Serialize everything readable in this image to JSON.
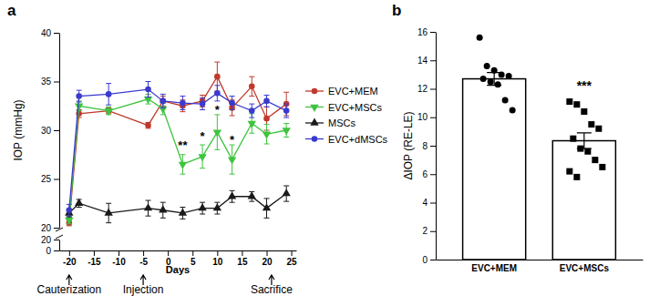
{
  "chart_data": [
    {
      "type": "line",
      "title": "a",
      "x_label": "Days",
      "y_label": "IOP (mmHg)",
      "x": [
        -20,
        -18,
        -12,
        -4,
        -1,
        3,
        7,
        10,
        13,
        17,
        20,
        24
      ],
      "xlim": [
        -22,
        26
      ],
      "xticks": [
        -20,
        -15,
        -10,
        -5,
        0,
        5,
        10,
        15,
        20,
        25
      ],
      "ylim": [
        0,
        40
      ],
      "yticks": [
        0,
        20,
        20,
        25,
        30,
        35,
        40
      ],
      "legend": "top-right",
      "series": [
        {
          "name": "EVC+MEM",
          "color": "#c0392b",
          "marker": "circle",
          "line_style": "solid",
          "values": [
            20.5,
            31.7,
            32.0,
            30.5,
            33.0,
            32.5,
            33.0,
            35.5,
            32.3,
            34.5,
            31.2,
            32.7
          ],
          "errors": [
            0.3,
            0.4,
            0.3,
            0.3,
            0.5,
            0.6,
            0.6,
            1.5,
            0.8,
            1.0,
            1.2,
            1.2
          ]
        },
        {
          "name": "EVC+MSCs",
          "color": "#3ec43e",
          "marker": "triangle-down",
          "line_style": "solid",
          "values": [
            20.8,
            32.5,
            32.0,
            33.2,
            32.2,
            26.5,
            27.3,
            29.8,
            27.0,
            30.7,
            29.6,
            30.0
          ],
          "errors": [
            0.4,
            0.5,
            0.4,
            0.5,
            0.6,
            1.0,
            1.2,
            1.8,
            1.5,
            1.0,
            1.0,
            0.7
          ]
        },
        {
          "name": "MSCs",
          "color": "#1a1a1a",
          "marker": "triangle",
          "line_style": "solid",
          "values": [
            21.5,
            22.5,
            21.5,
            22.0,
            21.8,
            21.5,
            22.0,
            22.0,
            23.2,
            23.2,
            22.0,
            23.5
          ],
          "errors": [
            0.4,
            0.4,
            1.0,
            0.8,
            0.8,
            0.6,
            0.6,
            0.6,
            0.6,
            0.5,
            1.0,
            0.8
          ]
        },
        {
          "name": "EVC+dMSCs",
          "color": "#3a3acd",
          "marker": "circle",
          "line_style": "solid",
          "values": [
            21.8,
            33.5,
            33.7,
            34.2,
            33.0,
            32.8,
            32.7,
            33.8,
            32.8,
            32.0,
            33.0,
            32.0
          ],
          "errors": [
            0.6,
            0.6,
            1.1,
            0.8,
            0.7,
            0.7,
            0.6,
            0.8,
            0.7,
            0.7,
            0.6,
            0.7
          ]
        }
      ],
      "annotations": [
        {
          "text": "**",
          "x": 3,
          "y": 28.0
        },
        {
          "text": "*",
          "x": 7,
          "y": 29.0
        },
        {
          "text": "*",
          "x": 10,
          "y": 31.7
        },
        {
          "text": "*",
          "x": 13,
          "y": 28.6
        }
      ],
      "events": [
        {
          "text": "Cauterization",
          "x": -20
        },
        {
          "text": "Injection",
          "x": -5
        },
        {
          "text": "Sacrifice",
          "x": 21
        }
      ]
    },
    {
      "type": "bar",
      "title": "b",
      "y_label": "ΔIOP (RE-LE)",
      "categories": [
        "EVC+MEM",
        "EVC+MSCs"
      ],
      "values": [
        12.7,
        8.35
      ],
      "errors": [
        0.45,
        0.55
      ],
      "points": [
        [
          15.6,
          13.6,
          13.3,
          13.0,
          12.9,
          12.7,
          12.5,
          12.3,
          11.2,
          10.5
        ],
        [
          11.1,
          10.9,
          10.4,
          9.5,
          9.2,
          8.5,
          7.8,
          7.6,
          7.0,
          6.5,
          6.2,
          5.8
        ]
      ],
      "color": "#ffffff",
      "ylim": [
        0,
        16
      ],
      "yticks": [
        0,
        2,
        4,
        6,
        8,
        10,
        12,
        14,
        16
      ],
      "annotations": [
        {
          "text": "***",
          "x": "EVC+MSCs",
          "y": 11.9
        }
      ]
    }
  ]
}
